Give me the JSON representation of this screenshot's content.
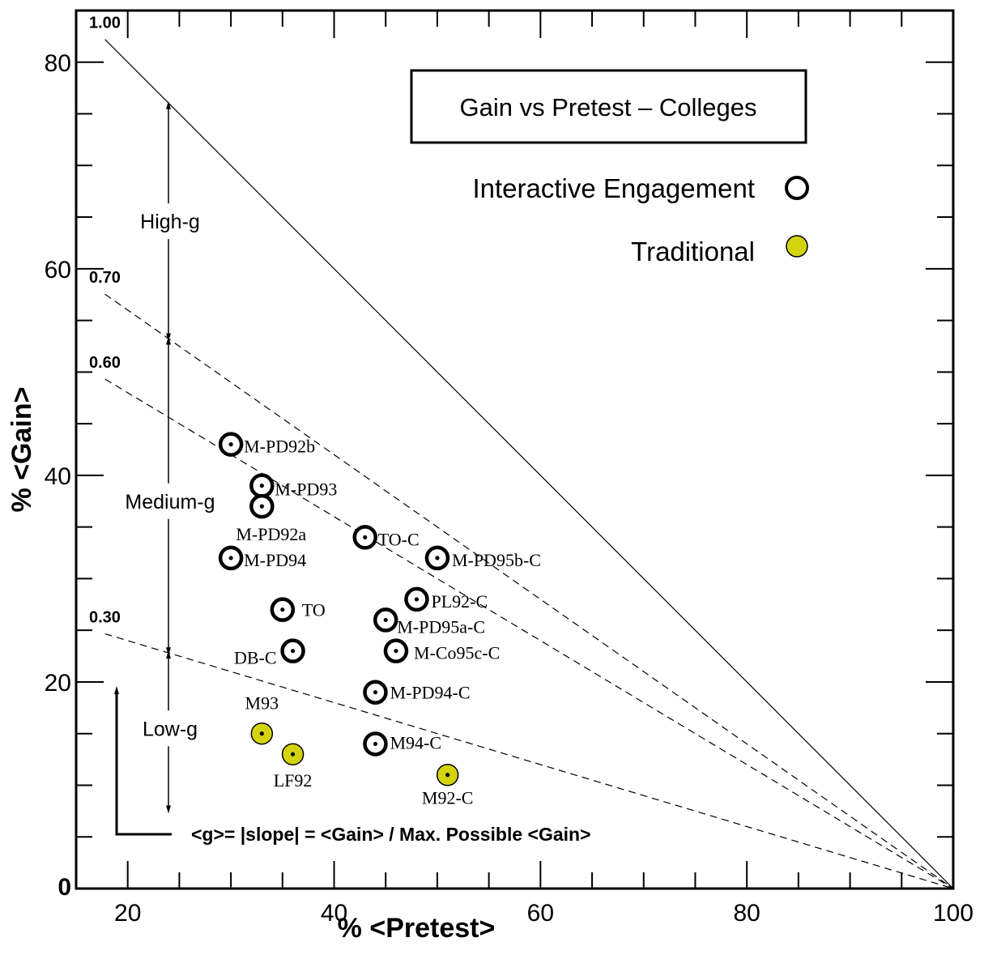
{
  "chart_data": {
    "type": "scatter",
    "title": "Gain vs Pretest – Colleges",
    "xlabel": "% <Pretest>",
    "ylabel": "% <Gain>",
    "xlim": [
      15,
      100
    ],
    "ylim": [
      0,
      85
    ],
    "x_ticks": [
      "20",
      "40",
      "60",
      "80",
      "100"
    ],
    "y_ticks": [
      "0",
      "20",
      "40",
      "60",
      "80"
    ],
    "grid": false,
    "legend_position": "top-right",
    "series": [
      {
        "name": "Interactive Engagement",
        "marker": "open-circle",
        "color": "#000000",
        "points": [
          {
            "label": "M-PD92b",
            "x": 30,
            "y": 43
          },
          {
            "label": "M-PD93",
            "x": 33,
            "y": 39
          },
          {
            "label": "M-PD92a",
            "x": 33,
            "y": 37
          },
          {
            "label": "M-PD94",
            "x": 30,
            "y": 32
          },
          {
            "label": "TO-C",
            "x": 43,
            "y": 34
          },
          {
            "label": "M-PD95b-C",
            "x": 50,
            "y": 32
          },
          {
            "label": "PL92-C",
            "x": 48,
            "y": 28
          },
          {
            "label": "M-PD95a-C",
            "x": 45,
            "y": 26
          },
          {
            "label": "TO",
            "x": 35,
            "y": 27
          },
          {
            "label": "DB-C",
            "x": 36,
            "y": 23
          },
          {
            "label": "M-Co95c-C",
            "x": 46,
            "y": 23
          },
          {
            "label": "M-PD94-C",
            "x": 44,
            "y": 19
          },
          {
            "label": "M94-C",
            "x": 44,
            "y": 14
          }
        ]
      },
      {
        "name": "Traditional",
        "marker": "filled-circle",
        "color": "#d4d40e",
        "points": [
          {
            "label": "M93",
            "x": 33,
            "y": 15
          },
          {
            "label": "LF92",
            "x": 36,
            "y": 13
          },
          {
            "label": "M92-C",
            "x": 51,
            "y": 11
          }
        ]
      }
    ],
    "g_lines": [
      {
        "label": "1.00",
        "slope": 1.0,
        "style": "solid"
      },
      {
        "label": "0.70",
        "slope": 0.7,
        "style": "dashed"
      },
      {
        "label": "0.60",
        "slope": 0.6,
        "style": "dashed"
      },
      {
        "label": "0.30",
        "slope": 0.3,
        "style": "dashed"
      }
    ],
    "bands": [
      {
        "label": "High-g",
        "y_range": [
          53.2,
          76
        ]
      },
      {
        "label": "Medium-g",
        "y_range": [
          22.8,
          53.2
        ]
      },
      {
        "label": "Low-g",
        "y_range": [
          7.5,
          22.8
        ]
      }
    ],
    "annotation": "<g>= |slope| = <Gain> / Max. Possible <Gain>"
  }
}
